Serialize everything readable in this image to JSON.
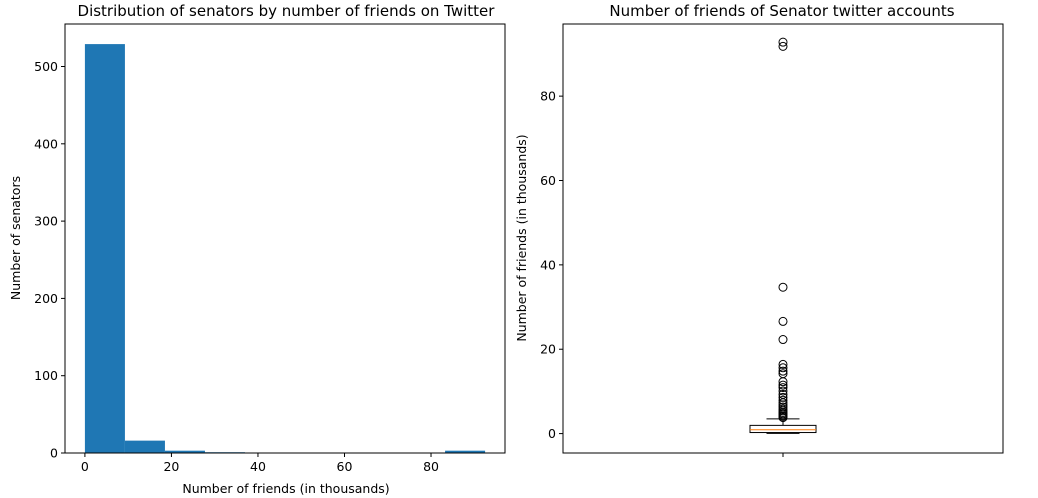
{
  "chart_data": [
    {
      "type": "histogram",
      "title": "Distribution of senators by number of friends on Twitter",
      "xlabel": "Number of friends (in thousands)",
      "ylabel": "Number of senators",
      "xlim": [
        -4.6,
        97.1
      ],
      "ylim": [
        0,
        555
      ],
      "xticks": [
        0,
        20,
        40,
        60,
        80
      ],
      "yticks": [
        0,
        100,
        200,
        300,
        400,
        500
      ],
      "bin_edges": [
        0.0,
        9.25,
        18.5,
        27.75,
        37.0,
        46.25,
        55.5,
        64.75,
        74.0,
        83.25,
        92.5
      ],
      "values": [
        529,
        16,
        3,
        1,
        0,
        0,
        0,
        0,
        0,
        3
      ],
      "color": "#1f77b4",
      "grid": false
    },
    {
      "type": "box",
      "title": "Number of friends of Senator twitter accounts",
      "xlabel": "",
      "ylabel": "Number of friends (in thousands)",
      "xticks": [
        ""
      ],
      "yticks": [
        0,
        20,
        40,
        60,
        80
      ],
      "ylim": [
        -4.6,
        97.1
      ],
      "stats": {
        "whisker_low": 0.05,
        "q1": 0.25,
        "median": 0.9,
        "q3": 1.95,
        "whisker_high": 3.5
      },
      "outliers": [
        92.8,
        91.8,
        34.7,
        26.6,
        22.3,
        16.4,
        15.6,
        14.8,
        14.2,
        12.3,
        11.5,
        10.9,
        10.1,
        9.3,
        8.6,
        7.9,
        7.3,
        6.8,
        6.3,
        5.8,
        5.4,
        5.0,
        4.7,
        4.4,
        4.1,
        3.8
      ],
      "median_color": "#ff7f0e",
      "grid": false
    }
  ]
}
